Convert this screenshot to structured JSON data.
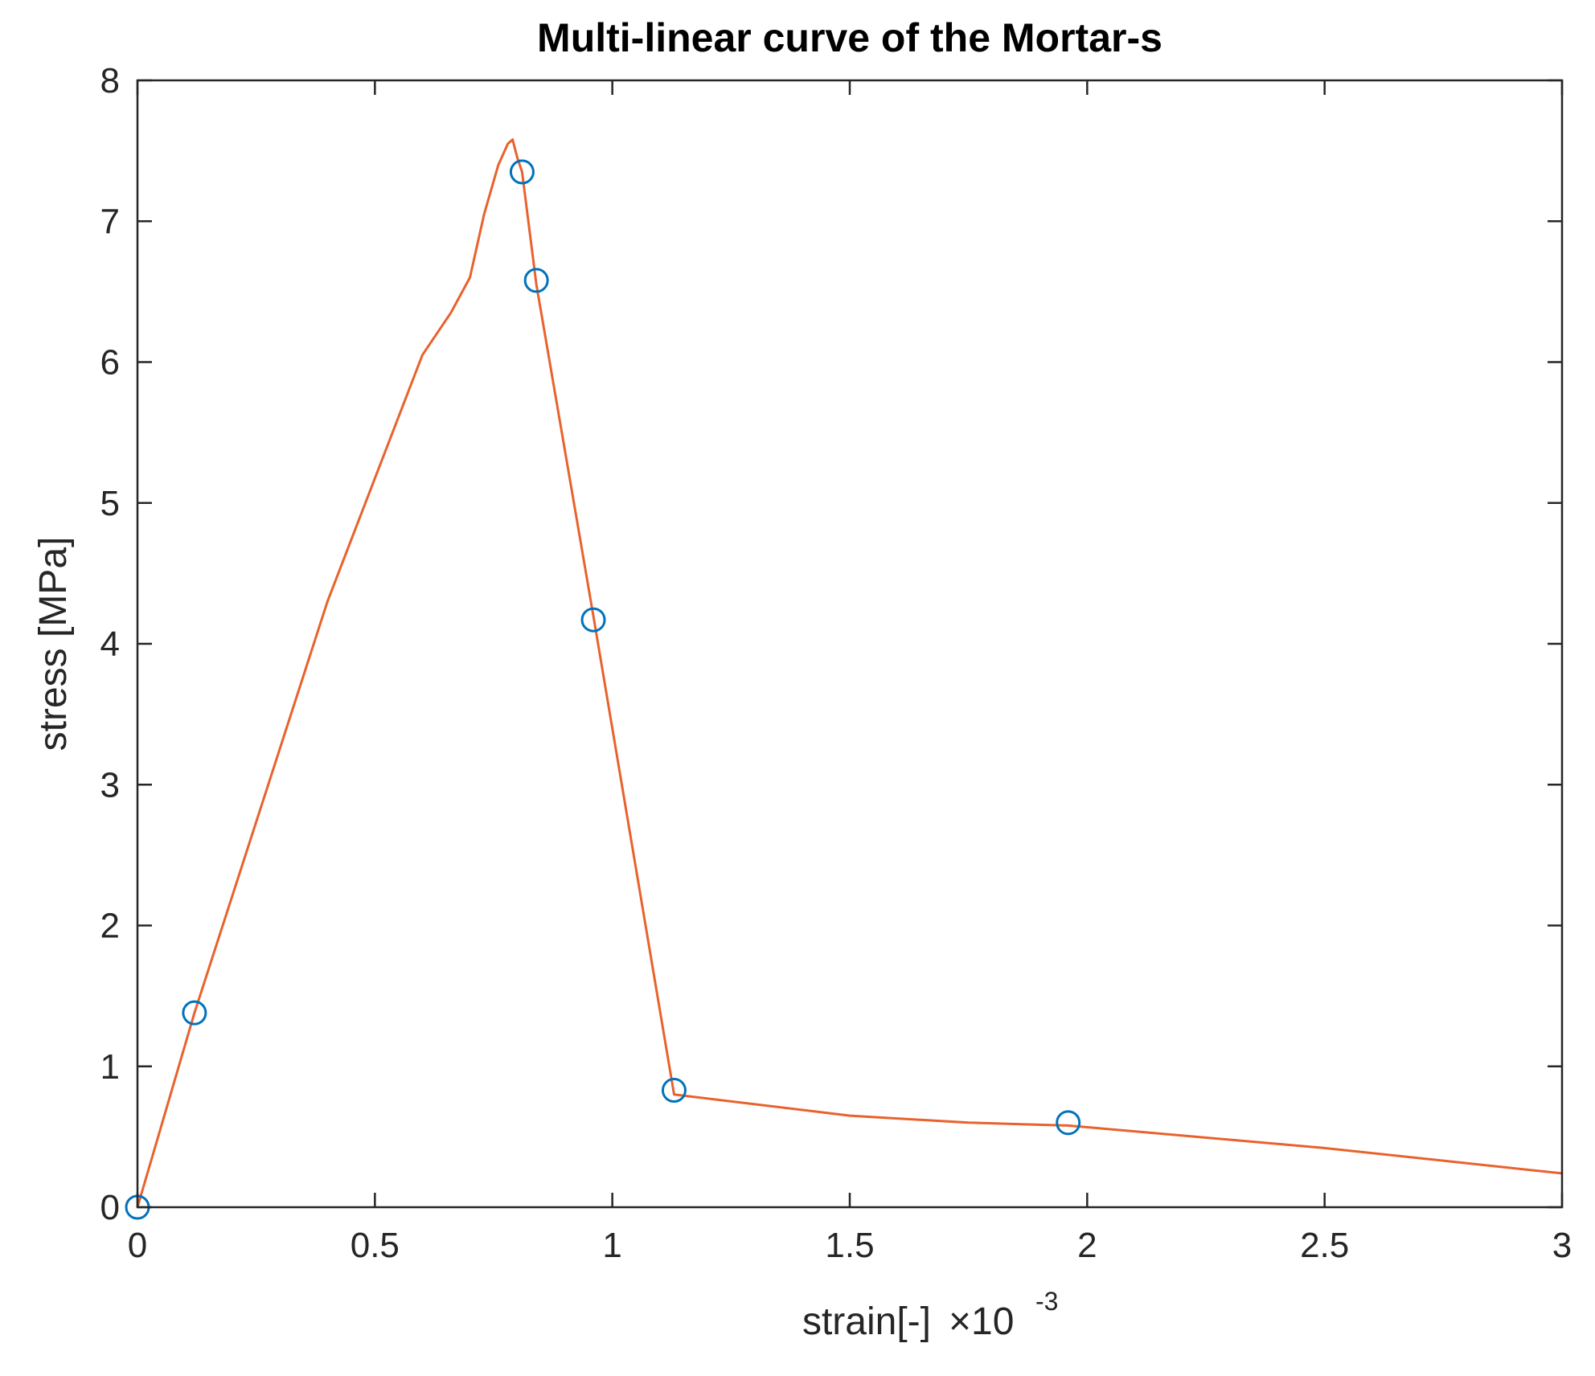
{
  "chart_data": {
    "type": "line",
    "title": "Multi-linear curve of the Mortar-s",
    "xlabel": "strain[-]",
    "x_multiplier": {
      "prefix": "×10",
      "exponent": "-3"
    },
    "ylabel": "stress  [MPa]",
    "xlim": [
      0,
      3
    ],
    "ylim": [
      0,
      8
    ],
    "xticks": [
      0,
      0.5,
      1,
      1.5,
      2,
      2.5,
      3
    ],
    "xtick_labels": [
      "0",
      "0.5",
      "1",
      "1.5",
      "2",
      "2.5",
      "3"
    ],
    "yticks": [
      0,
      1,
      2,
      3,
      4,
      5,
      6,
      7,
      8
    ],
    "ytick_labels": [
      "0",
      "1",
      "2",
      "3",
      "4",
      "5",
      "6",
      "7",
      "8"
    ],
    "grid": false,
    "series": [
      {
        "style": "line",
        "color": "#e8622d",
        "x": [
          0,
          0.12,
          0.4,
          0.6,
          0.66,
          0.7,
          0.73,
          0.76,
          0.78,
          0.79,
          0.8,
          0.81,
          0.84,
          0.96,
          1.13,
          1.5,
          1.75,
          1.96,
          2.5,
          3.0
        ],
        "y": [
          0,
          1.38,
          4.3,
          6.05,
          6.35,
          6.6,
          7.05,
          7.4,
          7.55,
          7.58,
          7.45,
          7.35,
          6.55,
          4.2,
          0.8,
          0.65,
          0.6,
          0.58,
          0.42,
          0.24
        ]
      },
      {
        "style": "markers",
        "marker": "circle",
        "color": "#0072bd",
        "x": [
          0,
          0.12,
          0.81,
          0.84,
          0.96,
          1.13,
          1.96
        ],
        "y": [
          0,
          1.38,
          7.35,
          6.58,
          4.17,
          0.83,
          0.6
        ]
      }
    ]
  }
}
